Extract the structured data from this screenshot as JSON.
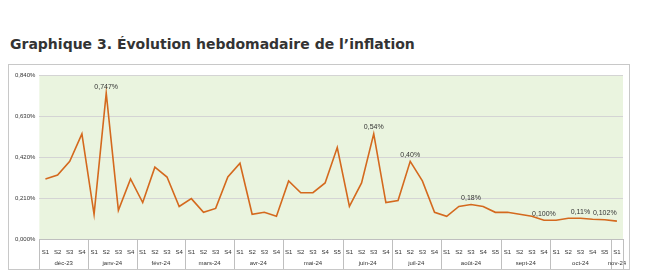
{
  "chart_data": {
    "type": "line",
    "title": "Graphique 3. Évolution hebdomadaire de l’inflation",
    "categories": [
      "S1",
      "S2",
      "S3",
      "S4",
      "S1",
      "S2",
      "S3",
      "S4",
      "S1",
      "S2",
      "S3",
      "S4",
      "S1",
      "S2",
      "S3",
      "S4",
      "S1",
      "S2",
      "S3",
      "S4",
      "S1",
      "S2",
      "S3",
      "S4",
      "S5",
      "S1",
      "S2",
      "S3",
      "S4",
      "S1",
      "S2",
      "S3",
      "S4",
      "S1",
      "S2",
      "S3",
      "S4",
      "S5",
      "S1",
      "S2",
      "S3",
      "S4",
      "S1",
      "S2",
      "S3",
      "S4",
      "S5",
      "S1"
    ],
    "category_groups": [
      {
        "label": "déc-23",
        "span": 4
      },
      {
        "label": "janv-24",
        "span": 4
      },
      {
        "label": "févr-24",
        "span": 4
      },
      {
        "label": "mars-24",
        "span": 4
      },
      {
        "label": "avr-24",
        "span": 4
      },
      {
        "label": "mai-24",
        "span": 5
      },
      {
        "label": "juin-24",
        "span": 4
      },
      {
        "label": "juil-24",
        "span": 4
      },
      {
        "label": "août-24",
        "span": 5
      },
      {
        "label": "sept-24",
        "span": 4
      },
      {
        "label": "oct-24",
        "span": 5
      },
      {
        "label": "nov-24",
        "span": 1
      }
    ],
    "values": [
      0.31,
      0.33,
      0.4,
      0.54,
      0.13,
      0.747,
      0.15,
      0.31,
      0.19,
      0.37,
      0.32,
      0.17,
      0.21,
      0.14,
      0.16,
      0.32,
      0.39,
      0.13,
      0.14,
      0.12,
      0.3,
      0.24,
      0.24,
      0.29,
      0.47,
      0.17,
      0.29,
      0.54,
      0.19,
      0.2,
      0.4,
      0.3,
      0.14,
      0.12,
      0.17,
      0.18,
      0.17,
      0.14,
      0.14,
      0.13,
      0.12,
      0.1,
      0.1,
      0.11,
      0.11,
      0.105,
      0.102,
      0.095
    ],
    "value_labels": [
      null,
      null,
      null,
      null,
      null,
      "0,747%",
      null,
      null,
      null,
      null,
      null,
      null,
      null,
      null,
      null,
      null,
      null,
      null,
      null,
      null,
      null,
      null,
      null,
      null,
      null,
      null,
      null,
      "0,54%",
      null,
      null,
      "0,40%",
      null,
      null,
      null,
      null,
      "0,18%",
      null,
      null,
      null,
      null,
      null,
      "0,100%",
      null,
      null,
      "0,11%",
      null,
      "0,102%",
      null
    ],
    "color": "#d4691e",
    "ylim": [
      0,
      0.84
    ],
    "yticks": [
      {
        "value": 0,
        "label": "0,000%"
      },
      {
        "value": 0.21,
        "label": "0,210%"
      },
      {
        "value": 0.42,
        "label": "0,420%"
      },
      {
        "value": 0.63,
        "label": "0,630%"
      },
      {
        "value": 0.84,
        "label": "0,840%"
      }
    ],
    "grid": true,
    "data_labels": true,
    "legend": false
  }
}
